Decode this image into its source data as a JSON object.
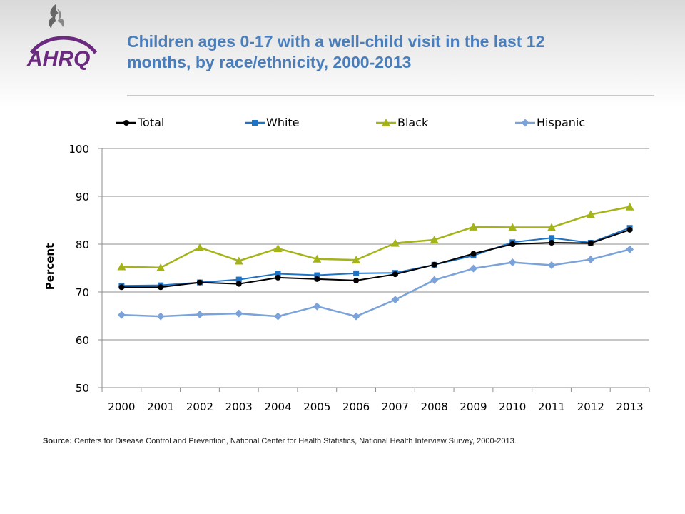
{
  "header": {
    "title_lines": [
      "Children ages 0-17 with a well-child visit in the last 12",
      "months, by race/ethnicity, 2000-2013"
    ],
    "logo_text": "AHRQ"
  },
  "source": {
    "label": "Source:",
    "text": " Centers for Disease Control and Prevention, National Center for Health Statistics, National Health Interview Survey, 2000-2013."
  },
  "colors": {
    "title": "#4a7ebb",
    "total": "#000000",
    "white": "#1f73c4",
    "black": "#a3b318",
    "hispanic": "#7ba3d9",
    "ahrq_purple": "#6b2a7f"
  },
  "chart_data": {
    "type": "line",
    "title": "Children ages 0-17 with a well-child visit in the last 12 months, by race/ethnicity, 2000-2013",
    "xlabel": "",
    "ylabel": "Percent",
    "ylim": [
      50,
      100
    ],
    "yticks": [
      50,
      60,
      70,
      80,
      90,
      100
    ],
    "grid": "horizontal",
    "legend_position": "top",
    "categories": [
      "2000",
      "2001",
      "2002",
      "2003",
      "2004",
      "2005",
      "2006",
      "2007",
      "2008",
      "2009",
      "2010",
      "2011",
      "2012",
      "2013"
    ],
    "series": [
      {
        "name": "Total",
        "marker": "circle",
        "color": "#000000",
        "values": [
          71.0,
          71.0,
          72.0,
          71.7,
          73.0,
          72.7,
          72.4,
          73.7,
          75.7,
          78.0,
          80.0,
          80.3,
          80.2,
          83.0
        ]
      },
      {
        "name": "White",
        "marker": "square",
        "color": "#1f73c4",
        "values": [
          71.3,
          71.4,
          72.0,
          72.6,
          73.8,
          73.5,
          73.9,
          74.0,
          75.7,
          77.6,
          80.4,
          81.3,
          80.3,
          83.4
        ]
      },
      {
        "name": "Black",
        "marker": "triangle",
        "color": "#a3b318",
        "values": [
          75.3,
          75.1,
          79.3,
          76.5,
          79.1,
          76.9,
          76.7,
          80.2,
          80.9,
          83.6,
          83.5,
          83.5,
          86.2,
          87.8
        ]
      },
      {
        "name": "Hispanic",
        "marker": "diamond",
        "color": "#7ba3d9",
        "values": [
          65.2,
          64.9,
          65.3,
          65.5,
          64.9,
          67.0,
          64.9,
          68.4,
          72.5,
          74.9,
          76.2,
          75.6,
          76.8,
          78.9
        ]
      }
    ]
  }
}
